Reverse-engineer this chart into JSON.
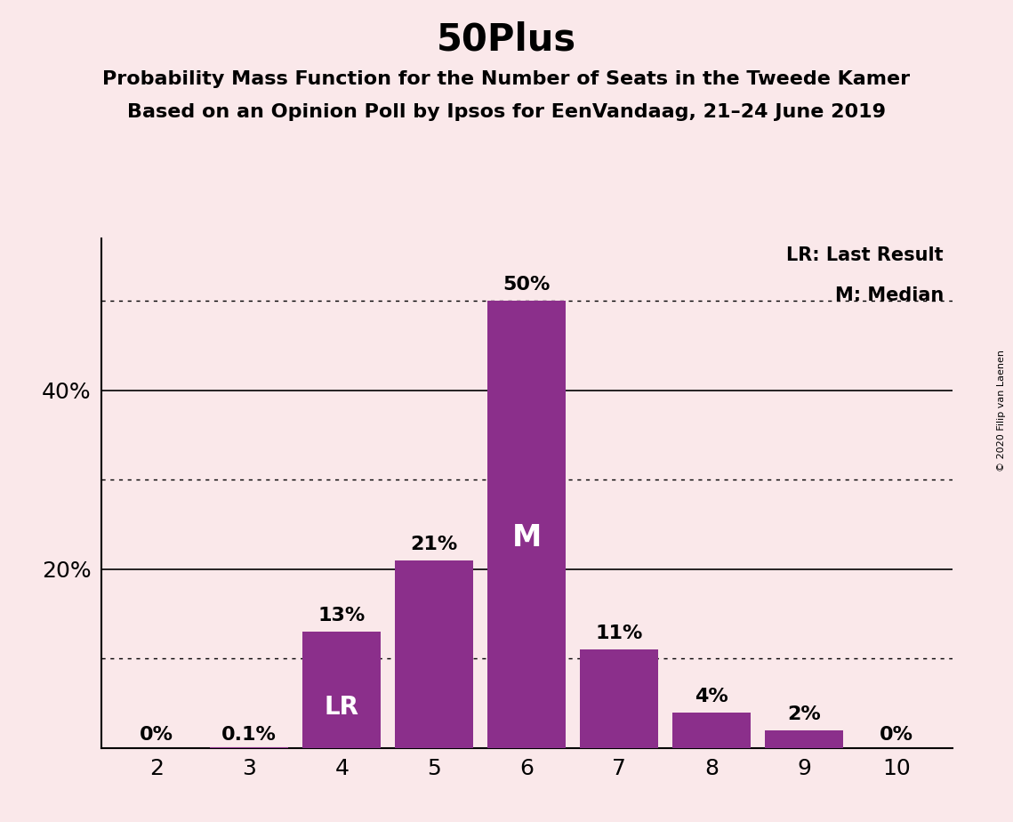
{
  "title": "50Plus",
  "subtitle1": "Probability Mass Function for the Number of Seats in the Tweede Kamer",
  "subtitle2": "Based on an Opinion Poll by Ipsos for EenVandaag, 21–24 June 2019",
  "copyright": "© 2020 Filip van Laenen",
  "categories": [
    2,
    3,
    4,
    5,
    6,
    7,
    8,
    9,
    10
  ],
  "values": [
    0.0,
    0.1,
    13.0,
    21.0,
    50.0,
    11.0,
    4.0,
    2.0,
    0.0
  ],
  "bar_color": "#8B2F8B",
  "background_color": "#FAE8EA",
  "bar_labels": [
    "0%",
    "0.1%",
    "13%",
    "21%",
    "50%",
    "11%",
    "4%",
    "2%",
    "0%"
  ],
  "lr_bar_index": 2,
  "median_bar_index": 4,
  "lr_label": "LR",
  "median_label": "M",
  "legend_lr": "LR: Last Result",
  "legend_m": "M: Median",
  "ylim": [
    0,
    57
  ],
  "yticks": [
    20,
    40
  ],
  "ytick_labels": [
    "20%",
    "40%"
  ],
  "dotted_lines": [
    10,
    30,
    50
  ],
  "solid_lines": [
    20,
    40
  ],
  "title_fontsize": 30,
  "subtitle_fontsize": 16,
  "label_fontsize": 15,
  "bar_label_fontsize": 16,
  "inner_label_fontsize_lr": 20,
  "inner_label_fontsize_m": 24,
  "ytick_fontsize": 18,
  "xtick_fontsize": 18
}
